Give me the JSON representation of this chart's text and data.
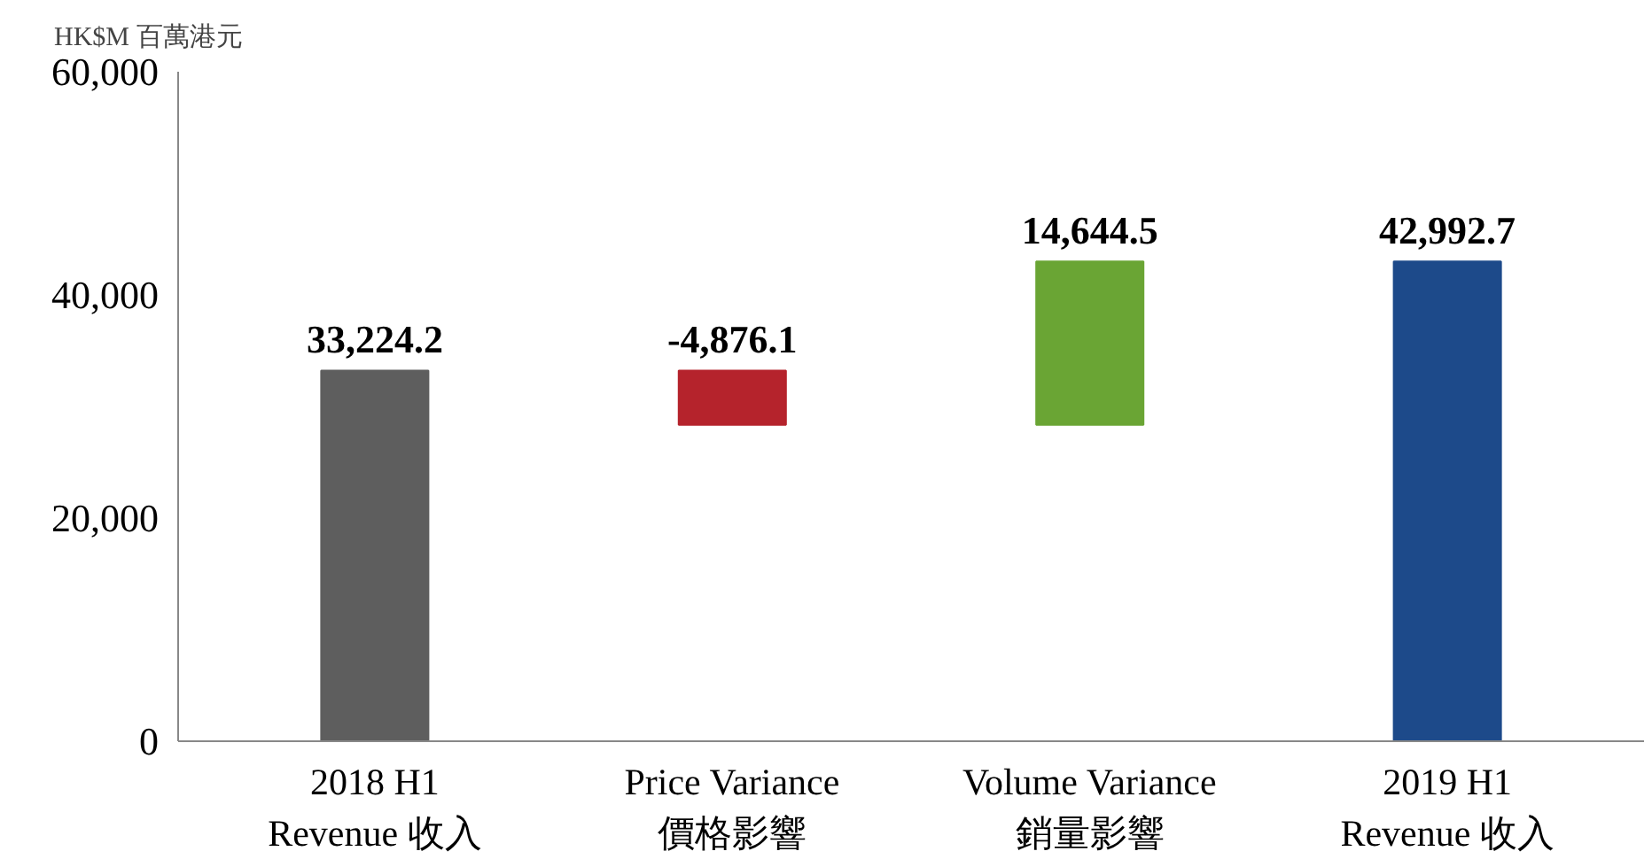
{
  "chart_data": {
    "type": "bar",
    "ylabel": "HK$M 百萬港元",
    "categories": [
      "2018 H1\nRevenue 收入",
      "Price Variance\n價格影響",
      "Volume Variance\n銷量影響",
      "2019 H1\nRevenue 收入"
    ],
    "values": [
      33224.2,
      -4876.1,
      14644.5,
      42992.7
    ],
    "base": [
      0,
      33224.2,
      28348.1,
      0
    ],
    "colors": [
      "#5e5e5e",
      "#b5232c",
      "#6aa534",
      "#1d4a8a"
    ],
    "value_labels": [
      "33,224.2",
      "-4,876.1",
      "14,644.5",
      "42,992.7"
    ],
    "ylim": [
      0,
      60000
    ],
    "yticks": [
      {
        "value": 0,
        "label": "0"
      },
      {
        "value": 20000,
        "label": "20,000"
      },
      {
        "value": 40000,
        "label": "40,000"
      },
      {
        "value": 60000,
        "label": "60,000"
      }
    ],
    "grid": false
  }
}
